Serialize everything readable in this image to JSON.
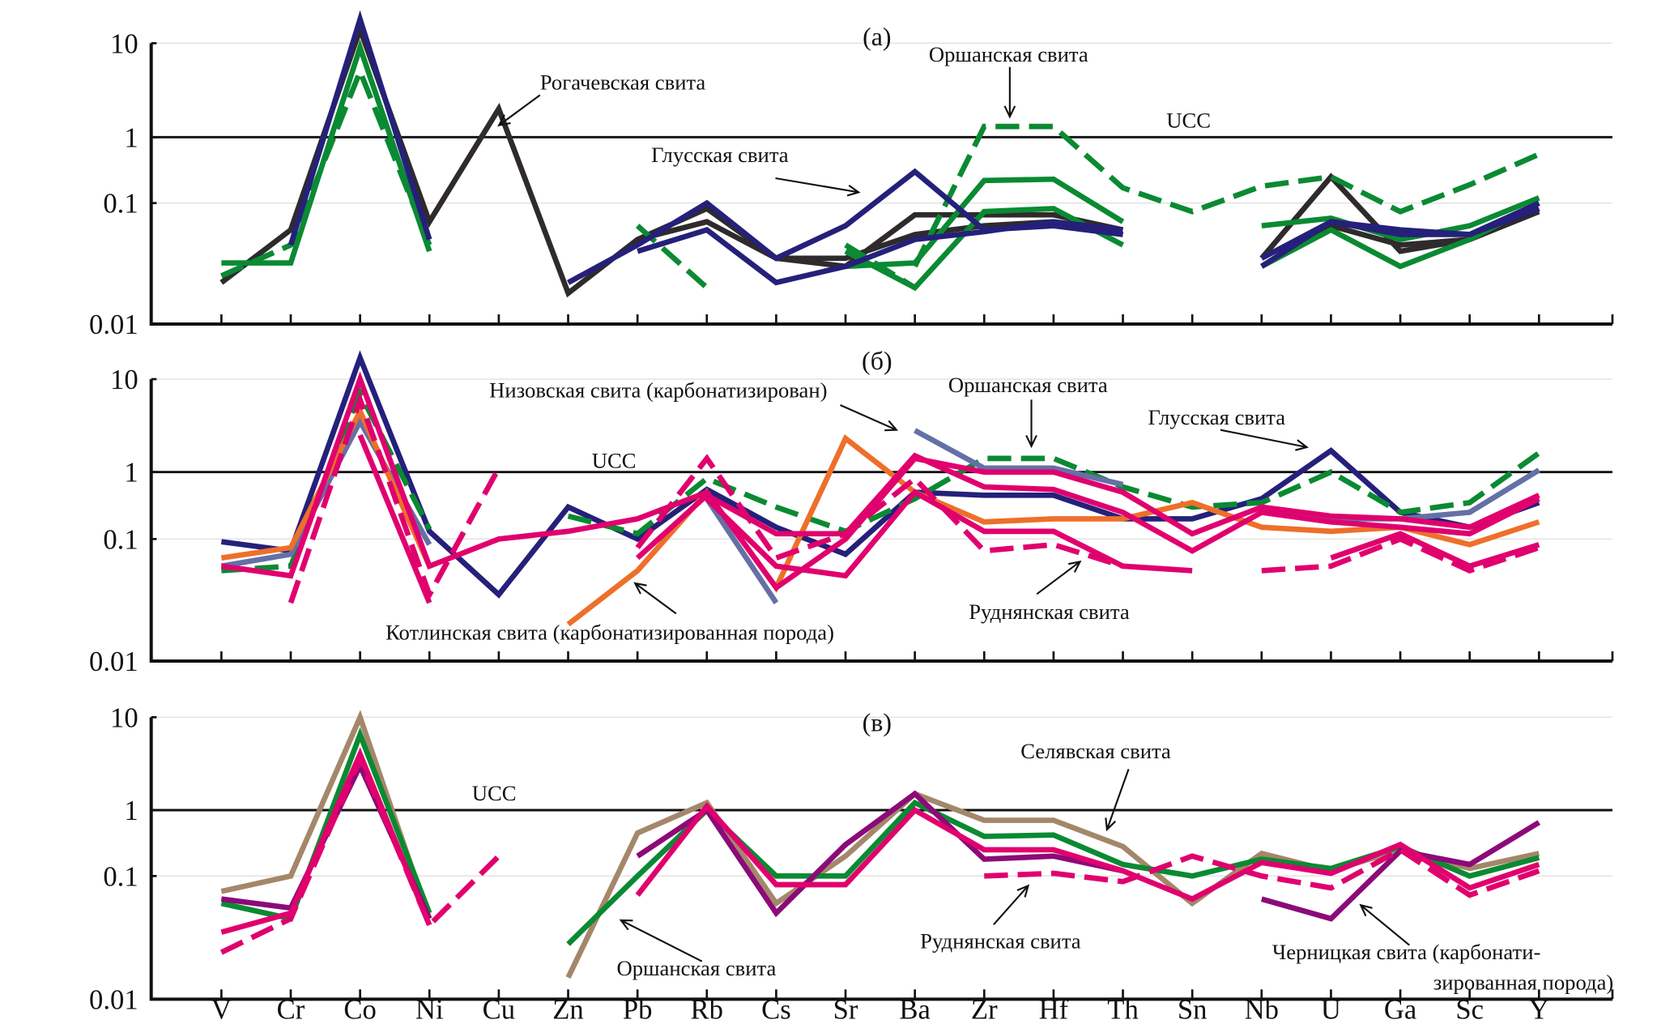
{
  "chart_data": {
    "type": "line",
    "yscale": "log",
    "ylabel": "",
    "xlabel": "",
    "yticks": [
      "0.01",
      "0.1",
      "1",
      "10"
    ],
    "ylim": [
      0.01,
      20
    ],
    "categories": [
      "V",
      "Cr",
      "Co",
      "Ni",
      "Cu",
      "Zn",
      "Pb",
      "Rb",
      "Cs",
      "Sr",
      "Ba",
      "Zr",
      "Hf",
      "Th",
      "Sn",
      "Nb",
      "U",
      "Ga",
      "Sc",
      "Y"
    ],
    "reference_line": {
      "label": "UCC",
      "value": 1
    },
    "colors": {
      "dark": "#2f2a2b",
      "navy": "#25207a",
      "green": "#0a8a32",
      "pink": "#e0006e",
      "orange": "#ee6f2a",
      "slate": "#6470a6",
      "tan": "#a4876a",
      "purple": "#8c0a78"
    },
    "panels": [
      {
        "label": "(а)",
        "annotations": [
          {
            "text": "Рогачевская свита"
          },
          {
            "text": "Оршанская свита"
          },
          {
            "text": "Глусская свита"
          },
          {
            "text": "UCC"
          }
        ],
        "series": [
          {
            "name": "Рогачевская свита",
            "color": "dark",
            "dash": false,
            "values": [
              0.022,
              0.06,
              14,
              0.07,
              2.0,
              0.018,
              0.05,
              0.09,
              0.035,
              0.03,
              0.08,
              0.08,
              0.08,
              0.06,
              null,
              0.035,
              0.25,
              0.04,
              0.05,
              0.085
            ]
          },
          {
            "name": "Рогачевская свита 2",
            "color": "dark",
            "dash": false,
            "values": [
              null,
              null,
              null,
              null,
              null,
              null,
              0.05,
              0.07,
              0.035,
              0.035,
              0.055,
              0.065,
              0.07,
              0.055,
              null,
              0.03,
              0.065,
              0.045,
              0.05,
              0.09
            ]
          },
          {
            "name": "Оршанская свита (пунктир)",
            "color": "green",
            "dash": true,
            "values": [
              0.025,
              0.045,
              5,
              0.045,
              null,
              null,
              0.065,
              0.02,
              null,
              null,
              0.03,
              1.3,
              1.3,
              0.17,
              0.085,
              0.18,
              0.25,
              0.085,
              0.19,
              0.55
            ]
          },
          {
            "name": "Оршанская свита 2",
            "color": "green",
            "dash": true,
            "values": [
              null,
              null,
              null,
              null,
              null,
              null,
              null,
              null,
              null,
              0.045,
              0.02,
              null,
              null,
              null,
              null,
              null,
              null,
              null,
              null,
              null
            ]
          },
          {
            "name": "Оршанская свита 3",
            "color": "green",
            "dash": false,
            "values": [
              0.032,
              0.032,
              9,
              0.04,
              null,
              null,
              null,
              null,
              null,
              0.03,
              0.032,
              0.22,
              0.23,
              0.07,
              null,
              0.065,
              0.075,
              0.05,
              0.065,
              0.12
            ]
          },
          {
            "name": "Оршанская свита 4",
            "color": "green",
            "dash": false,
            "values": [
              null,
              null,
              null,
              null,
              null,
              null,
              null,
              null,
              null,
              0.04,
              0.02,
              0.085,
              0.09,
              0.045,
              null,
              0.03,
              0.06,
              0.03,
              0.05,
              0.1
            ]
          },
          {
            "name": "Глусская свита",
            "color": "navy",
            "dash": false,
            "values": [
              null,
              0.045,
              18,
              0.05,
              null,
              0.022,
              0.045,
              0.1,
              0.035,
              0.065,
              0.3,
              0.06,
              0.065,
              0.055,
              null,
              0.03,
              0.07,
              0.055,
              0.055,
              0.09
            ]
          },
          {
            "name": "Глусская свита 2",
            "color": "navy",
            "dash": false,
            "values": [
              null,
              null,
              null,
              null,
              null,
              null,
              0.04,
              0.06,
              0.022,
              0.03,
              0.05,
              0.058,
              0.07,
              0.06,
              null,
              0.035,
              0.07,
              0.06,
              0.055,
              0.1
            ]
          }
        ]
      },
      {
        "label": "(б)",
        "annotations": [
          {
            "text": "Низовская свита (карбонатизирован)"
          },
          {
            "text": "Оршанская свита"
          },
          {
            "text": "Глусская свита"
          },
          {
            "text": "UCC"
          },
          {
            "text": "Котлинская свита (карбонатизированная порода)"
          },
          {
            "text": "Руднянская свита"
          }
        ],
        "series": [
          {
            "name": "Глусская свита",
            "color": "navy",
            "dash": false,
            "values": [
              0.095,
              0.08,
              17,
              0.13,
              0.035,
              0.3,
              0.1,
              0.55,
              0.15,
              0.075,
              0.5,
              0.45,
              0.45,
              0.2,
              0.2,
              0.4,
              1.7,
              0.25,
              0.15,
              0.35
            ]
          },
          {
            "name": "Оршанская свита",
            "color": "green",
            "dash": true,
            "values": [
              0.055,
              0.06,
              7,
              0.14,
              null,
              0.22,
              0.12,
              0.8,
              0.3,
              0.13,
              0.4,
              1.4,
              1.4,
              0.6,
              0.3,
              0.35,
              1.0,
              0.25,
              0.35,
              1.6
            ]
          },
          {
            "name": "Низовская свита",
            "color": "slate",
            "dash": false,
            "values": [
              0.06,
              0.075,
              3.5,
              0.09,
              null,
              0.03,
              null,
              0.4,
              0.03,
              null,
              2.8,
              1.1,
              1.1,
              0.65,
              null,
              0.3,
              0.2,
              0.2,
              0.25,
              1.05
            ]
          },
          {
            "name": "Котлинская свита",
            "color": "orange",
            "dash": false,
            "values": [
              0.07,
              0.085,
              4.5,
              0.06,
              null,
              0.02,
              0.055,
              0.5,
              0.04,
              2.3,
              0.5,
              0.18,
              0.2,
              0.2,
              0.35,
              0.15,
              0.13,
              0.15,
              0.09,
              0.18
            ]
          },
          {
            "name": "Руднянская свита 1",
            "color": "pink",
            "dash": false,
            "values": [
              0.06,
              0.05,
              10,
              0.06,
              0.1,
              0.13,
              0.2,
              0.5,
              0.04,
              0.1,
              1.4,
              1.0,
              1.0,
              0.5,
              0.12,
              0.3,
              0.22,
              0.2,
              0.15,
              0.45
            ]
          },
          {
            "name": "Руднянская свита 2",
            "color": "pink",
            "dash": false,
            "values": [
              null,
              null,
              2.5,
              0.03,
              null,
              null,
              null,
              0.4,
              0.06,
              0.05,
              0.5,
              0.13,
              0.13,
              0.06,
              0.055,
              null,
              0.07,
              0.12,
              0.06,
              0.09
            ]
          },
          {
            "name": "Руднянская свита 3",
            "color": "pink",
            "dash": true,
            "values": [
              null,
              0.03,
              6,
              0.035,
              1.1,
              null,
              0.085,
              1.4,
              0.07,
              0.12,
              0.8,
              0.08,
              0.09,
              0.06,
              null,
              0.055,
              0.06,
              0.1,
              0.055,
              0.085
            ]
          },
          {
            "name": "Руднянская свита 4",
            "color": "pink",
            "dash": false,
            "values": [
              null,
              null,
              null,
              null,
              null,
              null,
              0.07,
              0.45,
              0.12,
              0.12,
              1.5,
              0.6,
              0.55,
              0.25,
              0.08,
              0.25,
              0.18,
              0.15,
              0.12,
              0.4
            ]
          }
        ]
      },
      {
        "label": "(в)",
        "annotations": [
          {
            "text": "Селявская свита"
          },
          {
            "text": "UCC"
          },
          {
            "text": "Оршанская свита"
          },
          {
            "text": "Руднянская свита"
          },
          {
            "text": "Черницкая свита (карбонати-"
          },
          {
            "text": "зированная порода)"
          }
        ],
        "series": [
          {
            "name": "Селявская свита",
            "color": "tan",
            "dash": false,
            "values": [
              0.075,
              0.1,
              10,
              0.045,
              null,
              0.015,
              0.45,
              1.2,
              0.06,
              0.2,
              1.5,
              0.7,
              0.7,
              0.28,
              0.06,
              0.22,
              0.12,
              0.25,
              0.13,
              0.22
            ]
          },
          {
            "name": "Оршанская свита",
            "color": "green",
            "dash": false,
            "values": [
              0.06,
              0.045,
              6.5,
              0.05,
              null,
              0.028,
              0.1,
              1.0,
              0.1,
              0.1,
              1.2,
              0.4,
              0.42,
              0.15,
              0.1,
              0.18,
              0.13,
              0.28,
              0.1,
              0.19
            ]
          },
          {
            "name": "Черницкая свита",
            "color": "purple",
            "dash": false,
            "values": [
              0.065,
              0.055,
              3,
              0.045,
              null,
              null,
              0.2,
              1.0,
              0.05,
              0.3,
              1.5,
              0.18,
              0.2,
              0.12,
              null,
              0.065,
              0.045,
              0.24,
              0.15,
              0.65
            ]
          },
          {
            "name": "Руднянская свита 1",
            "color": "pink",
            "dash": false,
            "values": [
              0.035,
              0.05,
              4,
              0.04,
              null,
              null,
              0.07,
              1.1,
              0.085,
              0.085,
              1.0,
              0.25,
              0.25,
              0.12,
              0.065,
              0.16,
              0.11,
              0.3,
              0.08,
              0.15
            ]
          },
          {
            "name": "Руднянская свита 2",
            "color": "pink",
            "dash": true,
            "values": [
              0.024,
              0.045,
              3.5,
              0.04,
              0.2,
              null,
              null,
              null,
              null,
              null,
              null,
              0.1,
              0.11,
              0.09,
              0.2,
              0.1,
              0.08,
              0.25,
              0.07,
              0.12
            ]
          }
        ]
      }
    ]
  }
}
